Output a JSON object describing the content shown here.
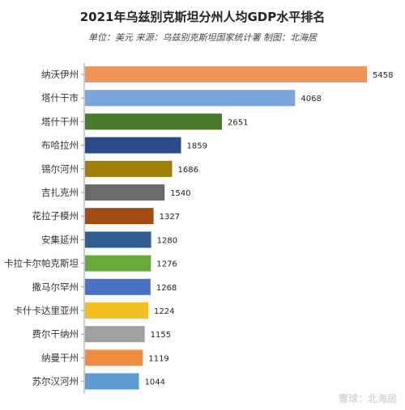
{
  "chart_data": {
    "type": "bar",
    "orientation": "horizontal",
    "title": "2021年乌兹别克斯坦分州人均GDP水平排名",
    "subtitle": "单位：美元 来源：乌兹别克斯坦国家统计署 制图：北海居",
    "categories": [
      "纳沃伊州",
      "塔什干市",
      "塔什干州",
      "布哈拉州",
      "锡尔河州",
      "吉扎克州",
      "花拉子模州",
      "安集延州",
      "卡拉卡尔帕克斯坦",
      "撒马尔罕州",
      "卡什卡达里亚州",
      "费尔干纳州",
      "纳曼干州",
      "苏尔汉河州"
    ],
    "values": [
      5458,
      4068,
      2651,
      1859,
      1686,
      1540,
      1327,
      1280,
      1276,
      1268,
      1224,
      1155,
      1119,
      1044
    ],
    "colors": [
      "#f0955a",
      "#7aa6dc",
      "#4a7a2c",
      "#2b4a8a",
      "#a0800a",
      "#6b6b6b",
      "#a24b12",
      "#2f5d92",
      "#6aaa3c",
      "#4a72c4",
      "#f4bf22",
      "#a0a0a0",
      "#f08c42",
      "#5b9bd5"
    ],
    "xlim": [
      0,
      5458
    ],
    "grid": false,
    "legend": "none"
  },
  "watermark": "雪球：北海居"
}
